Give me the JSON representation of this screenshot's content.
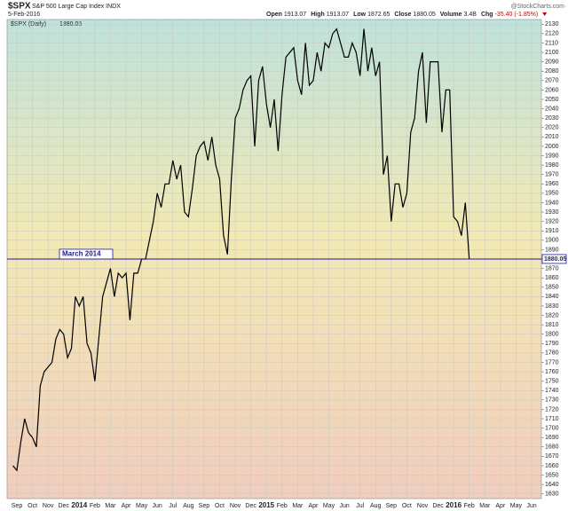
{
  "chart_data": {
    "type": "line",
    "header": {
      "symbol": "$SPX",
      "name": "S&P 500 Large Cap Index INDX",
      "date": "5-Feb-2016",
      "source": "@StockCharts.com",
      "quote": [
        {
          "label": "Open",
          "value": "1913.07"
        },
        {
          "label": "High",
          "value": "1913.07"
        },
        {
          "label": "Low",
          "value": "1872.65"
        },
        {
          "label": "Close",
          "value": "1880.05"
        },
        {
          "label": "Volume",
          "value": "3.4B"
        },
        {
          "label": "Chg",
          "value": "-35.40 (-1.85%)"
        }
      ]
    },
    "categories": [
      null,
      "Sep",
      null,
      null,
      null,
      "Oct",
      null,
      null,
      null,
      "Nov",
      null,
      null,
      null,
      "Dec",
      null,
      null,
      null,
      "2014",
      null,
      null,
      null,
      "Feb",
      null,
      null,
      null,
      "Mar",
      null,
      null,
      null,
      "Apr",
      null,
      null,
      null,
      "May",
      null,
      null,
      null,
      "Jun",
      null,
      null,
      null,
      "Jul",
      null,
      null,
      null,
      "Aug",
      null,
      null,
      null,
      "Sep",
      null,
      null,
      null,
      "Oct",
      null,
      null,
      null,
      "Nov",
      null,
      null,
      null,
      "Dec",
      null,
      null,
      null,
      "2015",
      null,
      null,
      null,
      "Feb",
      null,
      null,
      null,
      "Mar",
      null,
      null,
      null,
      "Apr",
      null,
      null,
      null,
      "May",
      null,
      null,
      null,
      "Jun",
      null,
      null,
      null,
      "Jul",
      null,
      null,
      null,
      "Aug",
      null,
      null,
      null,
      "Sep",
      null,
      null,
      null,
      "Oct",
      null,
      null,
      null,
      "Nov",
      null,
      null,
      null,
      "Dec",
      null,
      null,
      null,
      "2016",
      null,
      null,
      null,
      "Feb",
      null,
      null,
      null,
      "Mar",
      null,
      null,
      null,
      "Apr",
      null,
      null,
      null,
      "May",
      null,
      null,
      null,
      "Jun",
      null,
      null,
      null
    ],
    "series": [
      {
        "name": "$SPX (Daily)",
        "color": "#000000",
        "values": [
          1660,
          1655,
          1685,
          1710,
          1695,
          1690,
          1680,
          1745,
          1760,
          1765,
          1770,
          1795,
          1805,
          1800,
          1775,
          1785,
          1840,
          1830,
          1840,
          1790,
          1780,
          1750,
          1795,
          1840,
          1855,
          1870,
          1840,
          1865,
          1860,
          1865,
          1815,
          1865,
          1865,
          1880,
          1880,
          1900,
          1920,
          1950,
          1935,
          1960,
          1960,
          1985,
          1965,
          1980,
          1930,
          1925,
          1955,
          1990,
          2000,
          2005,
          1985,
          2010,
          1980,
          1965,
          1905,
          1885,
          1965,
          2030,
          2040,
          2060,
          2070,
          2075,
          2000,
          2070,
          2085,
          2045,
          2020,
          2050,
          1995,
          2055,
          2095,
          2100,
          2105,
          2070,
          2055,
          2110,
          2065,
          2070,
          2100,
          2080,
          2110,
          2105,
          2120,
          2125,
          2110,
          2095,
          2095,
          2110,
          2100,
          2075,
          2125,
          2080,
          2105,
          2075,
          2090,
          1970,
          1990,
          1920,
          1960,
          1960,
          1935,
          1950,
          2015,
          2030,
          2080,
          2100,
          2025,
          2090,
          2090,
          2090,
          2015,
          2060,
          2060,
          1925,
          1920,
          1905,
          1940,
          1880.05,
          null,
          null,
          null,
          null,
          null,
          null,
          null,
          null,
          null,
          null,
          null,
          null,
          null,
          null,
          null,
          null,
          null,
          null,
          null
        ]
      }
    ],
    "hline": {
      "value": 1880.05,
      "label": "March 2014",
      "color": "#1a1aa0"
    },
    "ylim": [
      1625,
      2135
    ],
    "yticks": [
      1630,
      1640,
      1650,
      1660,
      1670,
      1680,
      1690,
      1700,
      1710,
      1720,
      1730,
      1740,
      1750,
      1760,
      1770,
      1780,
      1790,
      1800,
      1810,
      1820,
      1830,
      1840,
      1850,
      1860,
      1870,
      1880,
      1890,
      1900,
      1910,
      1920,
      1930,
      1940,
      1950,
      1960,
      1970,
      1980,
      1990,
      2000,
      2010,
      2020,
      2030,
      2040,
      2050,
      2060,
      2070,
      2080,
      2090,
      2100,
      2110,
      2120,
      2130
    ],
    "grid": true
  }
}
